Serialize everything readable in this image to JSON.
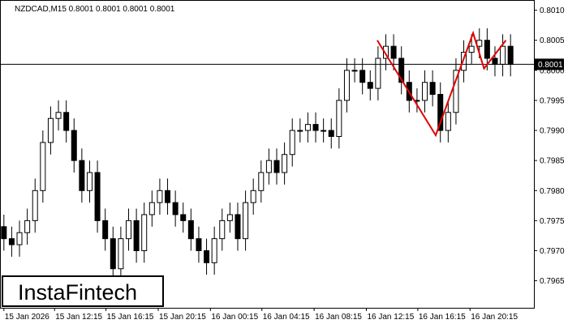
{
  "chart_data": {
    "type": "candlestick",
    "title": "NZDCAD,M15  0.8001 0.8001 0.8001 0.8001",
    "open": [
      0.7974,
      0.7972,
      0.7971,
      0.7973,
      0.7975,
      0.798,
      0.7988,
      0.7992,
      0.7993,
      0.799,
      0.7985,
      0.798,
      0.7983,
      0.7975,
      0.7972,
      0.7967,
      0.7972,
      0.7975,
      0.797,
      0.7976,
      0.7978,
      0.798,
      0.7978,
      0.7976,
      0.7975,
      0.7972,
      0.797,
      0.7968,
      0.7972,
      0.7975,
      0.7976,
      0.7972,
      0.7978,
      0.798,
      0.7983,
      0.7985,
      0.7983,
      0.7986,
      0.799,
      0.799,
      0.7991,
      0.799,
      0.799,
      0.7989,
      0.7995,
      0.8,
      0.8,
      0.7998,
      0.7997,
      0.8002,
      0.8004,
      0.8002,
      0.7998,
      0.7995,
      0.7995,
      0.7998,
      0.7996,
      0.799,
      0.7993,
      0.8,
      0.8003,
      0.8004,
      0.8005,
      0.8002,
      0.8001,
      0.8004
    ],
    "high": [
      0.7976,
      0.7974,
      0.7975,
      0.7977,
      0.7982,
      0.799,
      0.7994,
      0.7995,
      0.7995,
      0.7992,
      0.7987,
      0.7985,
      0.7985,
      0.7977,
      0.7974,
      0.7974,
      0.7977,
      0.7977,
      0.7978,
      0.798,
      0.7982,
      0.7982,
      0.798,
      0.7978,
      0.7977,
      0.7974,
      0.7972,
      0.7974,
      0.7977,
      0.7978,
      0.7978,
      0.798,
      0.7982,
      0.7985,
      0.7987,
      0.7987,
      0.7988,
      0.7992,
      0.7992,
      0.7993,
      0.7993,
      0.7992,
      0.7992,
      0.7997,
      0.8002,
      0.8002,
      0.8002,
      0.8,
      0.8004,
      0.8006,
      0.8006,
      0.8004,
      0.8,
      0.7997,
      0.8,
      0.8,
      0.7998,
      0.7995,
      0.8002,
      0.8005,
      0.8006,
      0.8007,
      0.8007,
      0.8004,
      0.8006,
      0.8006
    ],
    "low": [
      0.797,
      0.7969,
      0.7969,
      0.7971,
      0.7973,
      0.7978,
      0.7986,
      0.799,
      0.7988,
      0.7983,
      0.7978,
      0.7978,
      0.7973,
      0.797,
      0.7965,
      0.7965,
      0.797,
      0.7968,
      0.7968,
      0.7974,
      0.7976,
      0.7976,
      0.7974,
      0.7973,
      0.797,
      0.7968,
      0.7966,
      0.7966,
      0.797,
      0.7973,
      0.797,
      0.797,
      0.7976,
      0.7978,
      0.7981,
      0.7981,
      0.7981,
      0.7984,
      0.7988,
      0.7988,
      0.7988,
      0.7988,
      0.7987,
      0.7987,
      0.7993,
      0.7998,
      0.7996,
      0.7995,
      0.7995,
      0.8,
      0.8,
      0.7996,
      0.7993,
      0.7993,
      0.7993,
      0.7994,
      0.7988,
      0.7988,
      0.7991,
      0.7998,
      0.8001,
      0.8002,
      0.8,
      0.7999,
      0.7999,
      0.7999
    ],
    "close": [
      0.7972,
      0.7971,
      0.7973,
      0.7975,
      0.798,
      0.7988,
      0.7992,
      0.7993,
      0.799,
      0.7985,
      0.798,
      0.7983,
      0.7975,
      0.7972,
      0.7967,
      0.7972,
      0.7975,
      0.797,
      0.7976,
      0.7978,
      0.798,
      0.7978,
      0.7976,
      0.7975,
      0.7972,
      0.797,
      0.7968,
      0.7972,
      0.7975,
      0.7976,
      0.7972,
      0.7978,
      0.798,
      0.7983,
      0.7985,
      0.7983,
      0.7986,
      0.799,
      0.799,
      0.7991,
      0.799,
      0.799,
      0.7989,
      0.7995,
      0.8,
      0.8,
      0.7998,
      0.7997,
      0.8002,
      0.8004,
      0.8002,
      0.7998,
      0.7995,
      0.7995,
      0.7998,
      0.7996,
      0.799,
      0.7993,
      0.8,
      0.8003,
      0.8004,
      0.8005,
      0.8002,
      0.8001,
      0.8004,
      0.8001
    ],
    "xlim": [
      -0.5,
      68
    ],
    "xticks": [
      {
        "value": 0,
        "label": "15 Jan 2026"
      },
      {
        "value": 6.5,
        "label": "15 Jan 12:15"
      },
      {
        "value": 13.1,
        "label": "15 Jan 16:15"
      },
      {
        "value": 19.8,
        "label": "15 Jan 20:15"
      },
      {
        "value": 26.5,
        "label": "16 Jan 00:15"
      },
      {
        "value": 33.1,
        "label": "16 Jan 04:15"
      },
      {
        "value": 39.8,
        "label": "16 Jan 08:15"
      },
      {
        "value": 46.5,
        "label": "16 Jan 12:15"
      },
      {
        "value": 53.1,
        "label": "16 Jan 16:15"
      },
      {
        "value": 59.8,
        "label": "16 Jan 20:15"
      }
    ],
    "ylim": [
      0.79605,
      0.80117
    ],
    "yticks": [
      {
        "value": 0.801,
        "label": "0.8010"
      },
      {
        "value": 0.8005,
        "label": "0.8005"
      },
      {
        "value": 0.8,
        "label": "0.8000"
      },
      {
        "value": 0.7995,
        "label": "0.7995"
      },
      {
        "value": 0.799,
        "label": "0.7990"
      },
      {
        "value": 0.7985,
        "label": "0.7985"
      },
      {
        "value": 0.798,
        "label": "0.7980"
      },
      {
        "value": 0.7975,
        "label": "0.7975"
      },
      {
        "value": 0.797,
        "label": "0.7970"
      },
      {
        "value": 0.7965,
        "label": "0.7965"
      }
    ],
    "price_line": {
      "value": 0.8001,
      "label": "0.8001"
    },
    "pattern": {
      "color": "#e00000",
      "x": [
        47.9,
        55.4,
        60.2,
        61.6,
        64.4
      ],
      "values": [
        0.8005,
        0.79892,
        0.80062,
        0.80003,
        0.8005
      ]
    },
    "logo": "InstaFintech"
  }
}
